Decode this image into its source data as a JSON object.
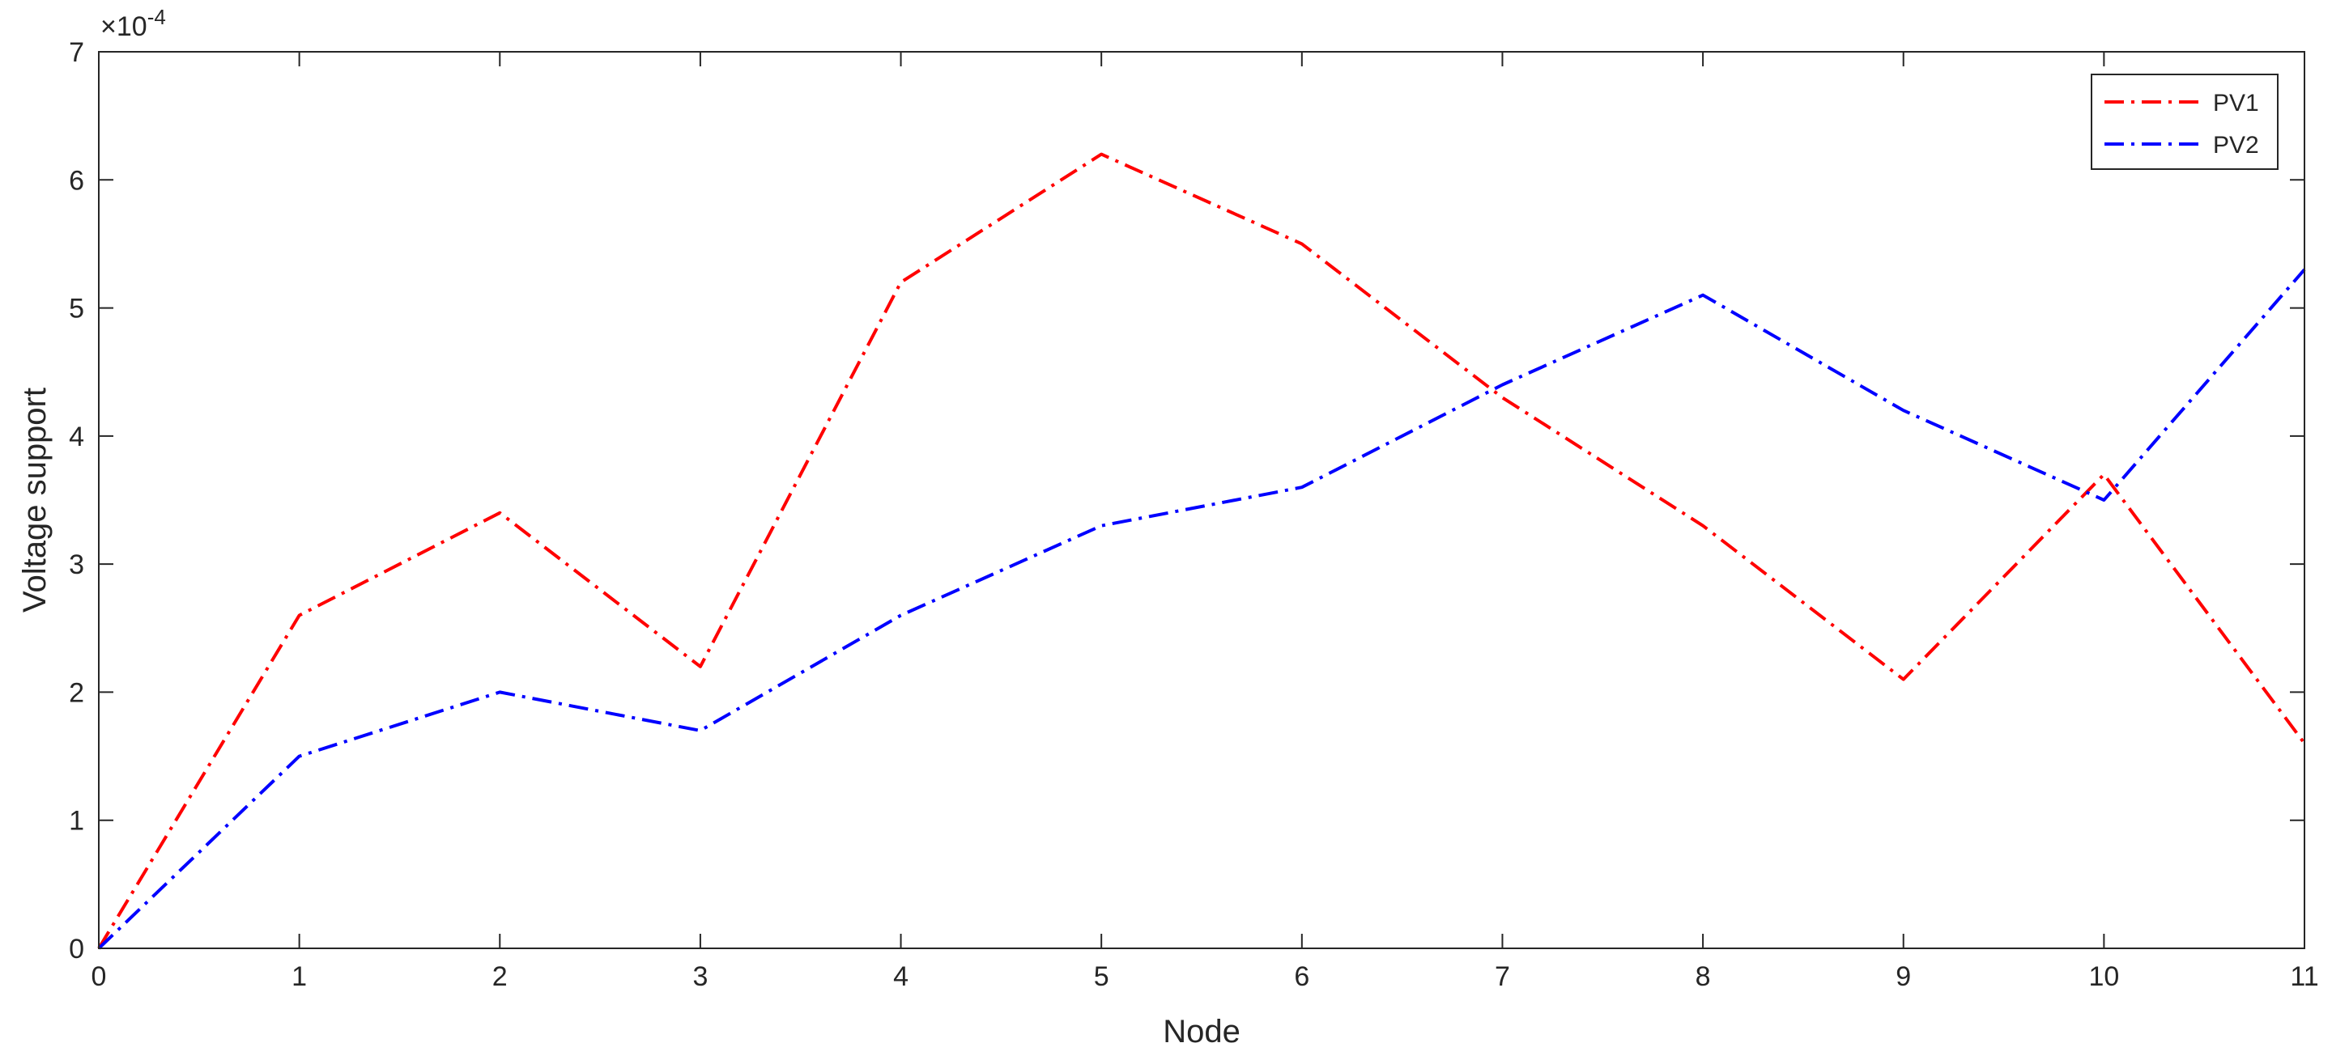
{
  "chart_data": {
    "type": "line",
    "title": "",
    "xlabel": "Node",
    "ylabel": "Voltage support",
    "y_exponent_label": "×10",
    "y_exponent": "-4",
    "x": [
      0,
      1,
      2,
      3,
      4,
      5,
      6,
      7,
      8,
      9,
      10,
      11
    ],
    "xlim": [
      0,
      11
    ],
    "ylim": [
      0,
      7
    ],
    "x_ticks": [
      "0",
      "1",
      "2",
      "3",
      "4",
      "5",
      "6",
      "7",
      "8",
      "9",
      "10",
      "11"
    ],
    "y_ticks": [
      "0",
      "1",
      "2",
      "3",
      "4",
      "5",
      "6",
      "7"
    ],
    "grid": false,
    "legend_position": "top-right",
    "series": [
      {
        "name": "PV1",
        "color": "#ff0000",
        "line_style": "dash-dot",
        "values": [
          0,
          2.6,
          3.4,
          2.2,
          5.2,
          6.2,
          5.5,
          4.3,
          3.3,
          2.1,
          3.7,
          1.6
        ]
      },
      {
        "name": "PV2",
        "color": "#0000ff",
        "line_style": "dash-dot",
        "values": [
          0,
          1.5,
          2.0,
          1.7,
          2.6,
          3.3,
          3.6,
          4.4,
          5.1,
          4.2,
          3.5,
          5.3
        ]
      }
    ]
  }
}
